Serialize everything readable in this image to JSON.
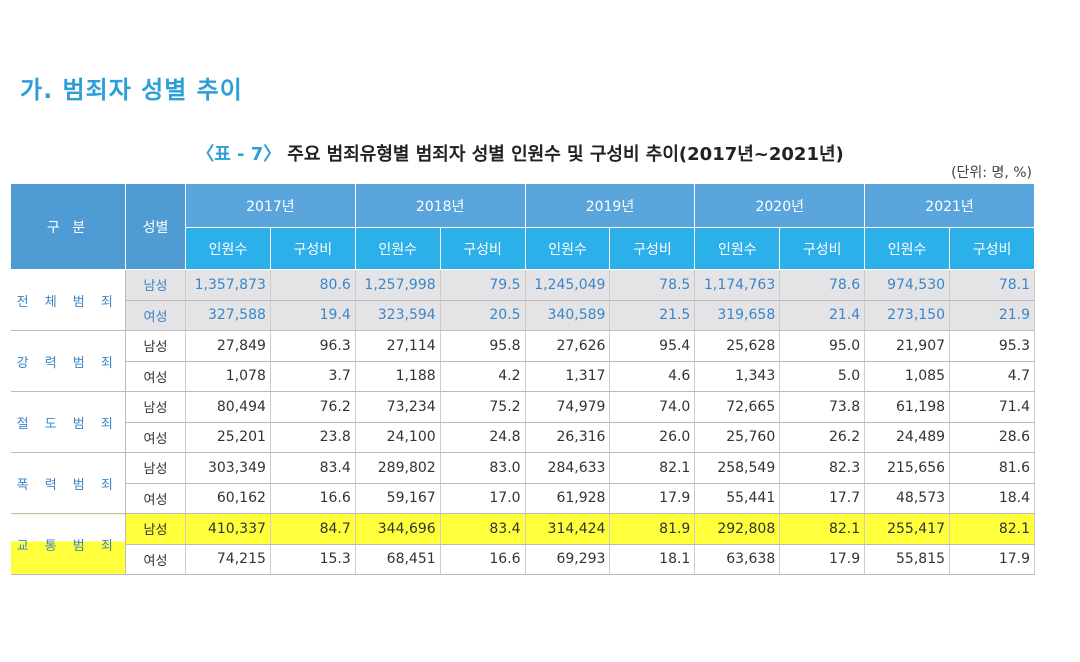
{
  "section_title": "가. 범죄자 성별 추이",
  "caption_label": "〈표 - 7〉",
  "caption_text": "주요 범죄유형별 범죄자 성별 인원수 및 구성비 추이(2017년~2021년)",
  "unit": "(단위: 명, %)",
  "table": {
    "category_header": "구 분",
    "gender_header": "성별",
    "years": [
      {
        "year": "2017년",
        "count": "인원수",
        "ratio": "구성비"
      },
      {
        "year": "2018년",
        "count": "인원수",
        "ratio": "구성비"
      },
      {
        "year": "2019년",
        "count": "인원수",
        "ratio": "구성비"
      },
      {
        "year": "2020년",
        "count": "인원수",
        "ratio": "구성비"
      },
      {
        "year": "2021년",
        "count": "인원수",
        "ratio": "구성비"
      }
    ],
    "groups": [
      {
        "name": "전 체 범 죄",
        "rows": [
          {
            "gender": "남성",
            "cells": [
              "1,357,873",
              "80.6",
              "1,257,998",
              "79.5",
              "1,245,049",
              "78.5",
              "1,174,763",
              "78.6",
              "974,530",
              "78.1"
            ]
          },
          {
            "gender": "여성",
            "cells": [
              "327,588",
              "19.4",
              "323,594",
              "20.5",
              "340,589",
              "21.5",
              "319,658",
              "21.4",
              "273,150",
              "21.9"
            ]
          }
        ]
      },
      {
        "name": "강 력 범 죄",
        "rows": [
          {
            "gender": "남성",
            "cells": [
              "27,849",
              "96.3",
              "27,114",
              "95.8",
              "27,626",
              "95.4",
              "25,628",
              "95.0",
              "21,907",
              "95.3"
            ]
          },
          {
            "gender": "여성",
            "cells": [
              "1,078",
              "3.7",
              "1,188",
              "4.2",
              "1,317",
              "4.6",
              "1,343",
              "5.0",
              "1,085",
              "4.7"
            ]
          }
        ]
      },
      {
        "name": "절 도 범 죄",
        "rows": [
          {
            "gender": "남성",
            "cells": [
              "80,494",
              "76.2",
              "73,234",
              "75.2",
              "74,979",
              "74.0",
              "72,665",
              "73.8",
              "61,198",
              "71.4"
            ]
          },
          {
            "gender": "여성",
            "cells": [
              "25,201",
              "23.8",
              "24,100",
              "24.8",
              "26,316",
              "26.0",
              "25,760",
              "26.2",
              "24,489",
              "28.6"
            ]
          }
        ]
      },
      {
        "name": "폭 력 범 죄",
        "rows": [
          {
            "gender": "남성",
            "cells": [
              "303,349",
              "83.4",
              "289,802",
              "83.0",
              "284,633",
              "82.1",
              "258,549",
              "82.3",
              "215,656",
              "81.6"
            ]
          },
          {
            "gender": "여성",
            "cells": [
              "60,162",
              "16.6",
              "59,167",
              "17.0",
              "61,928",
              "17.9",
              "55,441",
              "17.7",
              "48,573",
              "18.4"
            ]
          }
        ]
      },
      {
        "name": "교 통 범 죄",
        "rows": [
          {
            "gender": "남성",
            "cells": [
              "410,337",
              "84.7",
              "344,696",
              "83.4",
              "314,424",
              "81.9",
              "292,808",
              "82.1",
              "255,417",
              "82.1"
            ]
          },
          {
            "gender": "여성",
            "cells": [
              "74,215",
              "15.3",
              "68,451",
              "16.6",
              "69,293",
              "18.1",
              "63,638",
              "17.9",
              "55,815",
              "17.9"
            ]
          }
        ]
      }
    ]
  }
}
